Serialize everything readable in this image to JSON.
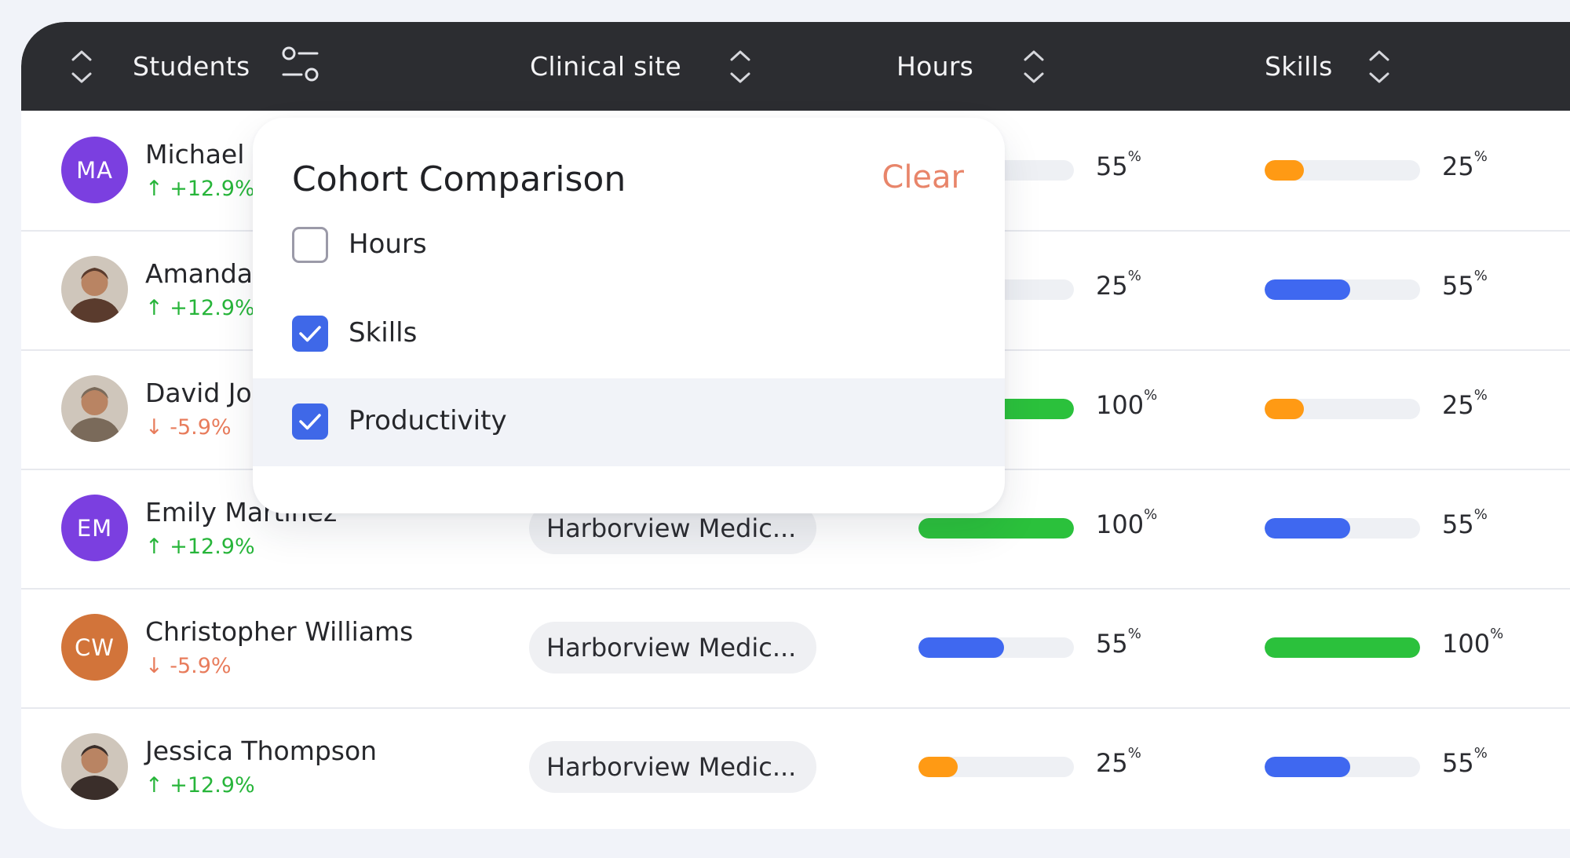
{
  "table": {
    "headers": {
      "students": "Students",
      "clinical_site": "Clinical site",
      "hours": "Hours",
      "skills": "Skills"
    },
    "rows": [
      {
        "initials": "MA",
        "name": "Michael",
        "trend": "+12.9%",
        "trend_dir": "up",
        "avatar_color": "#7b3fe0",
        "photo": false,
        "site": "",
        "hours_pct": "55",
        "hours_value": 0.55,
        "hours_color": "#3f68f0",
        "skills_pct": "25",
        "skills_value": 0.25,
        "skills_color": "#ff9a14"
      },
      {
        "initials": "",
        "name": "Amanda",
        "trend": "+12.9%",
        "trend_dir": "up",
        "avatar_color": "#5a3b2d",
        "photo": true,
        "site": "",
        "hours_pct": "25",
        "hours_value": 0.25,
        "hours_color": "#ff9a14",
        "skills_pct": "55",
        "skills_value": 0.55,
        "skills_color": "#3f68f0"
      },
      {
        "initials": "",
        "name": "David Jo",
        "trend": "-5.9%",
        "trend_dir": "down",
        "avatar_color": "#7a6a5a",
        "photo": true,
        "site": "",
        "hours_pct": "100",
        "hours_value": 1.0,
        "hours_color": "#2bc13c",
        "skills_pct": "25",
        "skills_value": 0.25,
        "skills_color": "#ff9a14"
      },
      {
        "initials": "EM",
        "name": "Emily Martinez",
        "trend": "+12.9%",
        "trend_dir": "up",
        "avatar_color": "#7b3fe0",
        "photo": false,
        "site": "Harborview Medic...",
        "hours_pct": "100",
        "hours_value": 1.0,
        "hours_color": "#2bc13c",
        "skills_pct": "55",
        "skills_value": 0.55,
        "skills_color": "#3f68f0"
      },
      {
        "initials": "CW",
        "name": "Christopher Williams",
        "trend": "-5.9%",
        "trend_dir": "down",
        "avatar_color": "#d2743a",
        "photo": false,
        "site": "Harborview Medic...",
        "hours_pct": "55",
        "hours_value": 0.55,
        "hours_color": "#3f68f0",
        "skills_pct": "100",
        "skills_value": 1.0,
        "skills_color": "#2bc13c"
      },
      {
        "initials": "",
        "name": "Jessica Thompson",
        "trend": "+12.9%",
        "trend_dir": "up",
        "avatar_color": "#3a2e2a",
        "photo": true,
        "site": "Harborview Medic...",
        "hours_pct": "25",
        "hours_value": 0.25,
        "hours_color": "#ff9a14",
        "skills_pct": "55",
        "skills_value": 0.55,
        "skills_color": "#3f68f0"
      }
    ]
  },
  "popup": {
    "title": "Cohort Comparison",
    "clear_label": "Clear",
    "options": [
      {
        "label": "Hours",
        "checked": false
      },
      {
        "label": "Skills",
        "checked": true
      },
      {
        "label": "Productivity",
        "checked": true
      }
    ]
  },
  "icons": {
    "sort": "sort-icon",
    "filter": "filter-icon",
    "check": "check-icon",
    "arrow_up": "arrow-up-icon",
    "arrow_down": "arrow-down-icon"
  }
}
